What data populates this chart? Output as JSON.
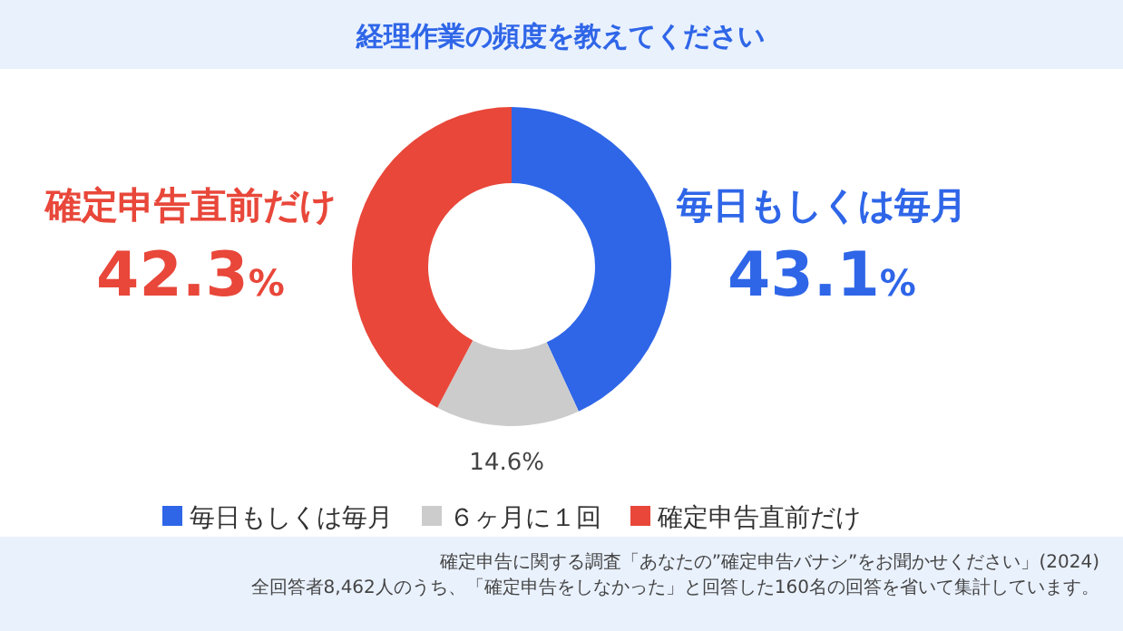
{
  "chart_data": {
    "type": "donut",
    "title": "経理作業の頻度を教えてください",
    "categories": [
      "毎日もしくは毎月",
      "６ヶ月に１回",
      "確定申告直前だけ"
    ],
    "values": [
      43.1,
      14.6,
      42.3
    ],
    "colors": [
      "#2f66e8",
      "#cccccc",
      "#e8473a"
    ],
    "value_labels": [
      "43.1%",
      "14.6%",
      "42.3%"
    ],
    "legend": "bottom",
    "annotations": [
      "確定申告に関する調査「あなたの”確定申告バナシ”をお聞かせください」(2024)",
      "全回答者8,462人のうち、「確定申告をしなかった」と回答した160名の回答を省いて集計しています。"
    ]
  }
}
